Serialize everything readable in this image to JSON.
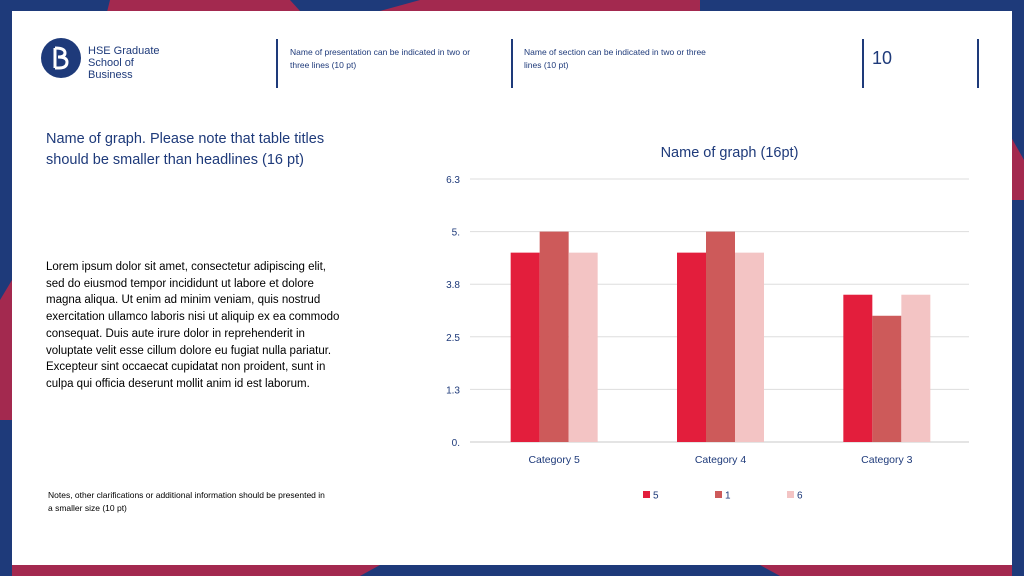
{
  "colors": {
    "navy": "#1e3a7a",
    "crimson": "#a3294f",
    "series_5": "#e31e3c",
    "series_1": "#cd5a5a",
    "series_6": "#f3c4c4"
  },
  "header": {
    "logo_icon": "hse-logo-icon",
    "logo_text": "HSE Graduate\nSchool of Business",
    "presentation_name": "Name of presentation can be indicated in two or three lines (10 pt)",
    "section_name": "Name of section can be indicated in two or three lines (10 pt)",
    "page_number": "10"
  },
  "left": {
    "title": "Name of graph. Please note that table titles should be smaller than headlines (16 pt)",
    "body": "Lorem ipsum dolor sit amet, consectetur adipiscing elit, sed do eiusmod tempor incididunt ut labore et dolore magna aliqua. Ut enim ad minim veniam, quis nostrud exercitation ullamco laboris nisi ut aliquip ex ea commodo consequat. Duis aute irure dolor in reprehenderit in voluptate velit esse cillum dolore eu fugiat nulla pariatur. Excepteur sint occaecat cupidatat non proident, sunt in culpa qui officia deserunt mollit anim id est laborum.",
    "notes": "Notes, other clarifications or additional information should be presented in a smaller size (10 pt)"
  },
  "chart_data": {
    "type": "bar",
    "title": "Name of graph (16pt)",
    "categories": [
      "Category 5",
      "Category 4",
      "Category 3"
    ],
    "series": [
      {
        "name": "5",
        "values": [
          4.5,
          4.5,
          3.5
        ]
      },
      {
        "name": "1",
        "values": [
          5,
          5,
          3
        ]
      },
      {
        "name": "6",
        "values": [
          4.5,
          4.5,
          3.5
        ]
      }
    ],
    "yticks": [
      "0.",
      "1.3",
      "2.5",
      "3.8",
      "5.",
      "6.3"
    ],
    "ytick_values": [
      0,
      1.25,
      2.5,
      3.75,
      5,
      6.25
    ],
    "ylim": [
      0,
      6.25
    ],
    "grid": true,
    "legend": "bottom"
  }
}
